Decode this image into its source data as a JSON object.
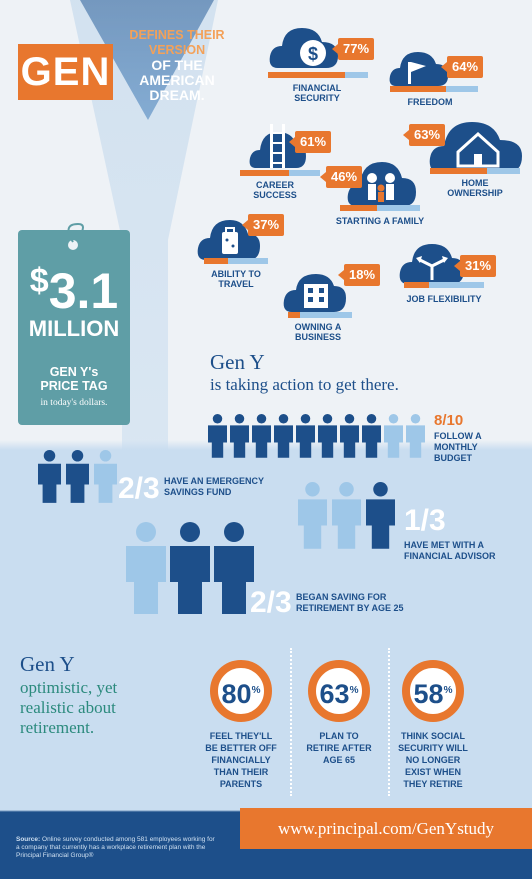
{
  "header": {
    "gen": "GEN",
    "line1": "DEFINES THEIR",
    "line2": "VERSION",
    "line3": "OF THE",
    "line4": "AMERICAN",
    "line5": "DREAM."
  },
  "dream_items": [
    {
      "label1": "FINANCIAL",
      "label2": "SECURITY",
      "pct_text": "77%",
      "value": 77,
      "icon": "money-bag-icon"
    },
    {
      "label1": "FREEDOM",
      "label2": "",
      "pct_text": "64%",
      "value": 64,
      "icon": "flag-icon"
    },
    {
      "label1": "CAREER",
      "label2": "SUCCESS",
      "pct_text": "61%",
      "value": 61,
      "icon": "ladder-icon"
    },
    {
      "label1": "HOME",
      "label2": "OWNERSHIP",
      "pct_text": "63%",
      "value": 63,
      "icon": "house-icon"
    },
    {
      "label1": "STARTING A FAMILY",
      "label2": "",
      "pct_text": "46%",
      "value": 46,
      "icon": "family-icon"
    },
    {
      "label1": "ABILITY TO",
      "label2": "TRAVEL",
      "pct_text": "37%",
      "value": 37,
      "icon": "suitcase-icon"
    },
    {
      "label1": "OWNING A",
      "label2": "BUSINESS",
      "pct_text": "18%",
      "value": 18,
      "icon": "building-icon"
    },
    {
      "label1": "JOB FLEXIBILITY",
      "label2": "",
      "pct_text": "31%",
      "value": 31,
      "icon": "arrows-icon"
    }
  ],
  "price_tag": {
    "dollar": "$",
    "amount": "3.1",
    "unit": "MILLION",
    "line1": "GEN Y's",
    "line2": "PRICE TAG",
    "small": "in today's dollars."
  },
  "action": {
    "title": "Gen Y",
    "subtitle": "is taking action to get there."
  },
  "stats": [
    {
      "fraction": "8/10",
      "line1": "FOLLOW A",
      "line2": "MONTHLY",
      "line3": "BUDGET",
      "filled": 8,
      "total": 10
    },
    {
      "fraction": "2/3",
      "line1": "HAVE AN EMERGENCY",
      "line2": "SAVINGS FUND",
      "line3": "",
      "filled": 2,
      "total": 3
    },
    {
      "fraction": "1/3",
      "line1": "HAVE MET WITH A",
      "line2": "FINANCIAL ADVISOR",
      "line3": "",
      "filled": 1,
      "total": 3
    },
    {
      "fraction": "2/3",
      "line1": "BEGAN SAVING FOR",
      "line2": "RETIREMENT BY AGE 25",
      "line3": "",
      "filled": 2,
      "total": 3
    }
  ],
  "optimism": {
    "title": "Gen Y",
    "line1": "optimistic, yet",
    "line2": "realistic about",
    "line3": "retirement."
  },
  "rings": [
    {
      "value": "80",
      "pct": "%",
      "l1": "FEEL THEY'LL",
      "l2": "BE BETTER OFF",
      "l3": "FINANCIALLY",
      "l4": "THAN THEIR",
      "l5": "PARENTS"
    },
    {
      "value": "63",
      "pct": "%",
      "l1": "PLAN TO",
      "l2": "RETIRE AFTER",
      "l3": "AGE 65",
      "l4": "",
      "l5": ""
    },
    {
      "value": "58",
      "pct": "%",
      "l1": "THINK SOCIAL",
      "l2": "SECURITY WILL",
      "l3": "NO LONGER",
      "l4": "EXIST WHEN",
      "l5": "THEY RETIRE"
    }
  ],
  "footer": {
    "url": "www.principal.com/GenYstudy",
    "source_label": "Source:",
    "source_text": "Online survey conducted among 581 employees working for a company that currently has a workplace retirement plan with the Principal Financial Group®"
  },
  "colors": {
    "navy": "#1d4f8a",
    "orange": "#e8772e",
    "light_blue": "#9ec7e8",
    "teal": "#5f9ea6"
  }
}
